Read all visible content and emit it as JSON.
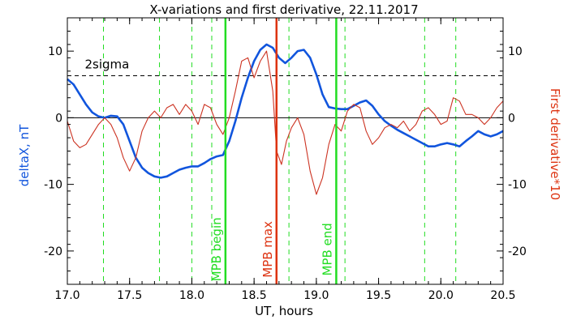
{
  "chart_data": {
    "type": "line",
    "title": "X-variations and first derivative, 22.11.2017",
    "xlabel": "UT, hours",
    "ylabel_left": "deltaX, nT",
    "ylabel_right": "First derivative*10",
    "xlim": [
      17.0,
      20.5
    ],
    "ylim": [
      -25,
      15
    ],
    "x_ticks": [
      "17.0",
      "17.5",
      "18.0",
      "18.5",
      "19.0",
      "19.5",
      "20.0",
      "20.5"
    ],
    "x_tick_values": [
      17.0,
      17.5,
      18.0,
      18.5,
      19.0,
      19.5,
      20.0,
      20.5
    ],
    "y_ticks": [
      "10",
      "0",
      "-10",
      "-20"
    ],
    "y_tick_values": [
      10,
      0,
      -10,
      -20
    ],
    "two_sigma": {
      "label": "2sigma",
      "value": 6.3
    },
    "zero_line": 0,
    "markers": [
      {
        "label": "MPB begin",
        "x": 18.27,
        "color": "#22dd22"
      },
      {
        "label": "MPB max",
        "x": 18.68,
        "color": "#dd3311"
      },
      {
        "label": "MPB end",
        "x": 19.16,
        "color": "#22dd22"
      }
    ],
    "dashed_verticals": [
      17.29,
      17.74,
      18.0,
      18.16,
      18.78,
      19.23,
      19.87,
      20.12
    ],
    "series": [
      {
        "name": "deltaX, nT",
        "color": "#1155dd",
        "x": [
          17.0,
          17.05,
          17.1,
          17.15,
          17.2,
          17.25,
          17.3,
          17.35,
          17.4,
          17.45,
          17.5,
          17.55,
          17.6,
          17.65,
          17.7,
          17.75,
          17.8,
          17.85,
          17.9,
          17.95,
          18.0,
          18.05,
          18.1,
          18.15,
          18.2,
          18.25,
          18.3,
          18.35,
          18.4,
          18.45,
          18.5,
          18.55,
          18.6,
          18.65,
          18.7,
          18.75,
          18.8,
          18.85,
          18.9,
          18.95,
          19.0,
          19.05,
          19.1,
          19.15,
          19.2,
          19.25,
          19.3,
          19.35,
          19.4,
          19.45,
          19.5,
          19.55,
          19.6,
          19.65,
          19.7,
          19.75,
          19.8,
          19.85,
          19.9,
          19.95,
          20.0,
          20.05,
          20.1,
          20.15,
          20.2,
          20.25,
          20.3,
          20.35,
          20.4,
          20.45,
          20.5
        ],
        "values": [
          5.8,
          5.0,
          3.5,
          2.0,
          0.8,
          0.2,
          0.0,
          0.3,
          0.2,
          -1.0,
          -3.5,
          -6.0,
          -7.5,
          -8.3,
          -8.8,
          -9.0,
          -8.8,
          -8.3,
          -7.8,
          -7.5,
          -7.3,
          -7.3,
          -6.8,
          -6.2,
          -5.8,
          -5.6,
          -3.5,
          -0.5,
          3.0,
          6.0,
          8.5,
          10.2,
          11.0,
          10.5,
          9.0,
          8.2,
          9.0,
          10.0,
          10.2,
          9.0,
          6.5,
          3.5,
          1.6,
          1.4,
          1.3,
          1.3,
          1.8,
          2.3,
          2.6,
          1.8,
          0.5,
          -0.5,
          -1.2,
          -1.8,
          -2.3,
          -2.8,
          -3.3,
          -3.8,
          -4.3,
          -4.3,
          -4.0,
          -3.8,
          -4.0,
          -4.3,
          -3.5,
          -2.8,
          -2.0,
          -2.5,
          -2.8,
          -2.5,
          -2.0
        ]
      },
      {
        "name": "First derivative*10",
        "color": "#cc3322",
        "x": [
          17.0,
          17.05,
          17.1,
          17.15,
          17.2,
          17.25,
          17.3,
          17.35,
          17.4,
          17.45,
          17.5,
          17.55,
          17.6,
          17.65,
          17.7,
          17.75,
          17.8,
          17.85,
          17.9,
          17.95,
          18.0,
          18.05,
          18.1,
          18.15,
          18.2,
          18.25,
          18.3,
          18.35,
          18.4,
          18.45,
          18.5,
          18.55,
          18.6,
          18.65,
          18.68,
          18.72,
          18.76,
          18.8,
          18.85,
          18.9,
          18.95,
          19.0,
          19.05,
          19.1,
          19.15,
          19.2,
          19.25,
          19.3,
          19.35,
          19.4,
          19.45,
          19.5,
          19.55,
          19.6,
          19.65,
          19.7,
          19.75,
          19.8,
          19.85,
          19.9,
          19.95,
          20.0,
          20.05,
          20.1,
          20.15,
          20.2,
          20.25,
          20.3,
          20.35,
          20.4,
          20.45,
          20.5
        ],
        "values": [
          -0.5,
          -3.5,
          -4.5,
          -4.0,
          -2.5,
          -1.0,
          0.0,
          -1.0,
          -3.0,
          -6.0,
          -8.0,
          -6.0,
          -2.0,
          0.0,
          1.0,
          0.0,
          1.5,
          2.0,
          0.5,
          2.0,
          1.0,
          -1.0,
          2.0,
          1.5,
          -1.0,
          -2.5,
          0.0,
          4.0,
          8.5,
          9.0,
          6.0,
          8.5,
          10.0,
          4.0,
          -5.0,
          -7.0,
          -3.5,
          -1.5,
          0.0,
          -2.5,
          -8.0,
          -11.5,
          -9.0,
          -4.0,
          -1.0,
          -2.0,
          1.0,
          2.0,
          1.5,
          -2.0,
          -4.0,
          -3.0,
          -1.5,
          -1.0,
          -1.5,
          -0.5,
          -2.0,
          -1.0,
          1.0,
          1.5,
          0.5,
          -1.0,
          -0.5,
          3.0,
          2.5,
          0.5,
          0.5,
          0.0,
          -1.0,
          0.0,
          1.5,
          2.5
        ]
      }
    ]
  }
}
